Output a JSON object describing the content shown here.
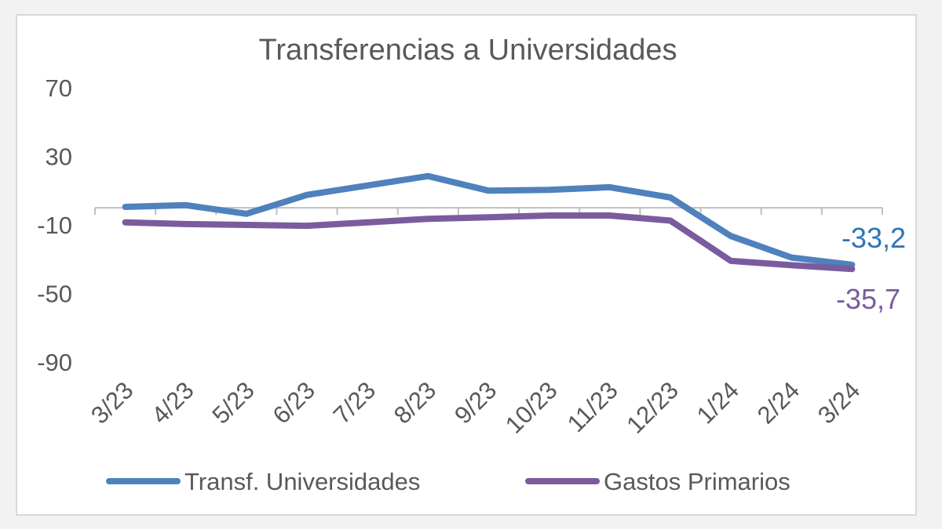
{
  "chart_data": {
    "type": "line",
    "title": "Transferencias a Universidades",
    "xlabel": "",
    "ylabel": "",
    "categories": [
      "3/23",
      "4/23",
      "5/23",
      "6/23",
      "7/23",
      "8/23",
      "9/23",
      "10/23",
      "11/23",
      "12/23",
      "1/24",
      "2/24",
      "3/24"
    ],
    "yticks": [
      70,
      30,
      -10,
      -50,
      -90
    ],
    "ylim": [
      -90,
      70
    ],
    "series": [
      {
        "name": "Transf. Universidades",
        "color": "#4f81bd",
        "values": [
          0.5,
          1.5,
          -3.5,
          7.5,
          13,
          18.5,
          10,
          10.5,
          12,
          6,
          -16.5,
          -29,
          -33.2
        ],
        "end_label": "-33,2"
      },
      {
        "name": "Gastos Primarios",
        "color": "#7a5c9e",
        "values": [
          -8.5,
          -9.5,
          -10,
          -10.5,
          -8.5,
          -6.5,
          -5.5,
          -4.5,
          -4.5,
          -7.5,
          -31,
          -33.5,
          -35.7
        ],
        "end_label": "-35,7"
      }
    ],
    "legend_position": "bottom",
    "grid": false
  }
}
